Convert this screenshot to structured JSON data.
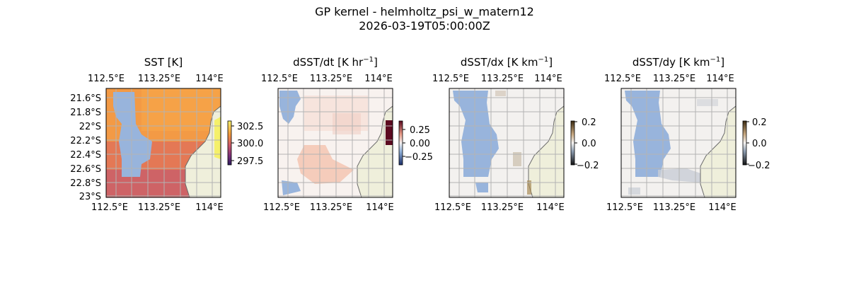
{
  "figure": {
    "title_line1": "GP kernel - helmholtz_psi_w_matern12",
    "title_line2": "2026-03-19T05:00:00Z"
  },
  "colors": {
    "land": "#efefdb",
    "mask_blue": "#98b4dc",
    "coast": "#6a6a6a",
    "grid": "#b3b3b3"
  },
  "chart_data": [
    {
      "type": "heatmap",
      "title": "SST [K]",
      "x_ticks": [
        "112.5°E",
        "113.25°E",
        "114°E"
      ],
      "y_ticks": [
        "21.6°S",
        "21.8°S",
        "22°S",
        "22.2°S",
        "22.4°S",
        "22.6°S",
        "22.8°S",
        "23°S"
      ],
      "colorbar": {
        "ticks": [
          "302.5",
          "300.0",
          "297.5"
        ],
        "range": [
          297,
          303
        ]
      },
      "lon_range": [
        112.5,
        114.0
      ],
      "lat_range": [
        -23.0,
        -21.5
      ]
    },
    {
      "type": "heatmap",
      "title_main": "dSST/dt [K hr",
      "title_sup": "−1",
      "title_end": "]",
      "x_ticks": [
        "112.5°E",
        "113.25°E",
        "114°E"
      ],
      "colorbar": {
        "ticks": [
          "0.25",
          "0.00",
          "−0.25"
        ],
        "range": [
          -0.4,
          0.4
        ]
      }
    },
    {
      "type": "heatmap",
      "title_main": "dSST/dx [K km",
      "title_sup": "−1",
      "title_end": "]",
      "x_ticks": [
        "112.5°E",
        "113.25°E",
        "114°E"
      ],
      "colorbar": {
        "ticks": [
          "0.2",
          "0.0",
          "−0.2"
        ],
        "range": [
          -0.2,
          0.2
        ]
      }
    },
    {
      "type": "heatmap",
      "title_main": "dSST/dy [K km",
      "title_sup": "−1",
      "title_end": "]",
      "x_ticks": [
        "112.5°E",
        "113.25°E",
        "114°E"
      ],
      "colorbar": {
        "ticks": [
          "0.2",
          "0.0",
          "−0.2"
        ],
        "range": [
          -0.2,
          0.2
        ]
      }
    }
  ]
}
